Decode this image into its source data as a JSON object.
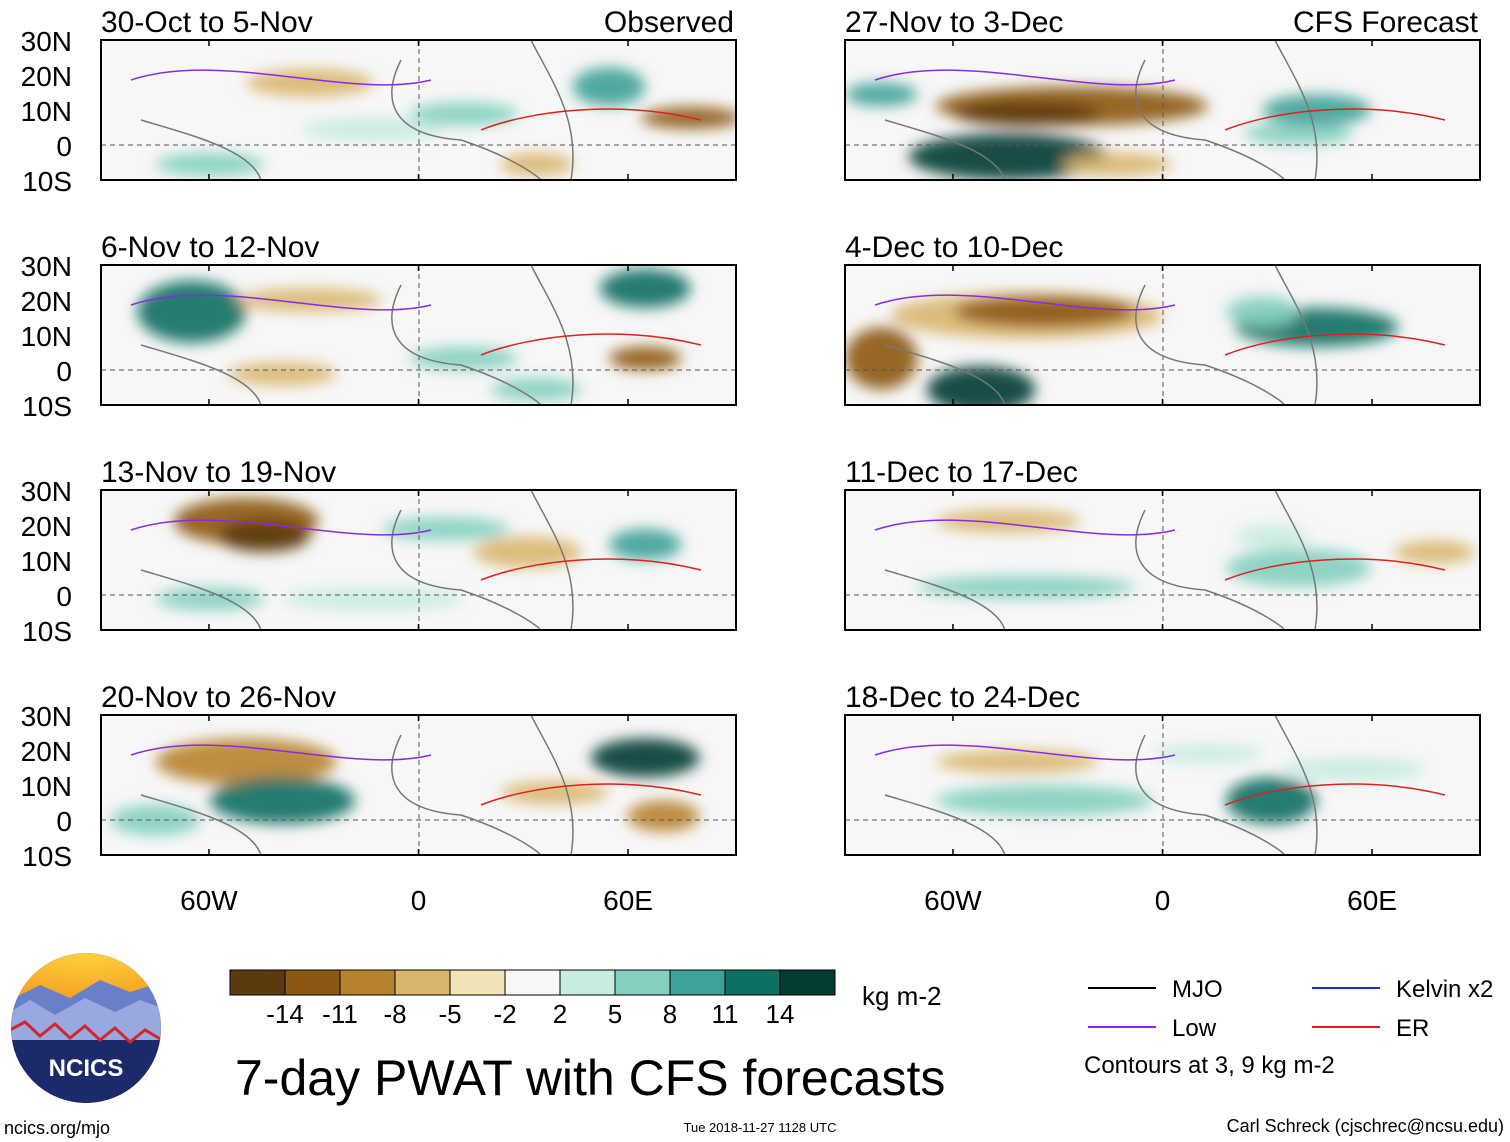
{
  "panels": [
    {
      "title": "30-Oct to 5-Nov",
      "tag": "Observed"
    },
    {
      "title": "27-Nov to 3-Dec",
      "tag": "CFS Forecast"
    },
    {
      "title": "6-Nov to 12-Nov",
      "tag": ""
    },
    {
      "title": "4-Dec to 10-Dec",
      "tag": ""
    },
    {
      "title": "13-Nov to 19-Nov",
      "tag": ""
    },
    {
      "title": "11-Dec to 17-Dec",
      "tag": ""
    },
    {
      "title": "20-Nov to 26-Nov",
      "tag": ""
    },
    {
      "title": "18-Dec to 24-Dec",
      "tag": ""
    }
  ],
  "lat_labels": [
    "30N",
    "20N",
    "10N",
    "0",
    "10S"
  ],
  "lon_labels": [
    "60W",
    "0",
    "60E"
  ],
  "colorbar": {
    "colors": [
      "#5b3a10",
      "#8c5713",
      "#b7822e",
      "#d9b66e",
      "#f2e2b7",
      "#f7f7f7",
      "#c8ebe2",
      "#84cfc0",
      "#3fa197",
      "#0e6f63",
      "#023c33"
    ],
    "ticks": [
      "-14",
      "-11",
      "-8",
      "-5",
      "-2",
      "2",
      "5",
      "8",
      "11",
      "14"
    ],
    "units": "kg m-2"
  },
  "logo": {
    "text": "NCICS"
  },
  "main_title": "7-day PWAT with CFS forecasts",
  "legend": {
    "items": [
      {
        "label": "MJO",
        "color": "#000000"
      },
      {
        "label": "Kelvin x2",
        "color": "#1b2fd0"
      },
      {
        "label": "Low",
        "color": "#8a2be2"
      },
      {
        "label": "ER",
        "color": "#e0201b"
      }
    ],
    "note": "Contours at 3, 9 kg m-2"
  },
  "footer": {
    "left": "ncics.org/mjo",
    "center": "Tue 2018-11-27 1128 UTC",
    "right": "Carl Schreck (cjschrec@ncsu.edu)"
  }
}
